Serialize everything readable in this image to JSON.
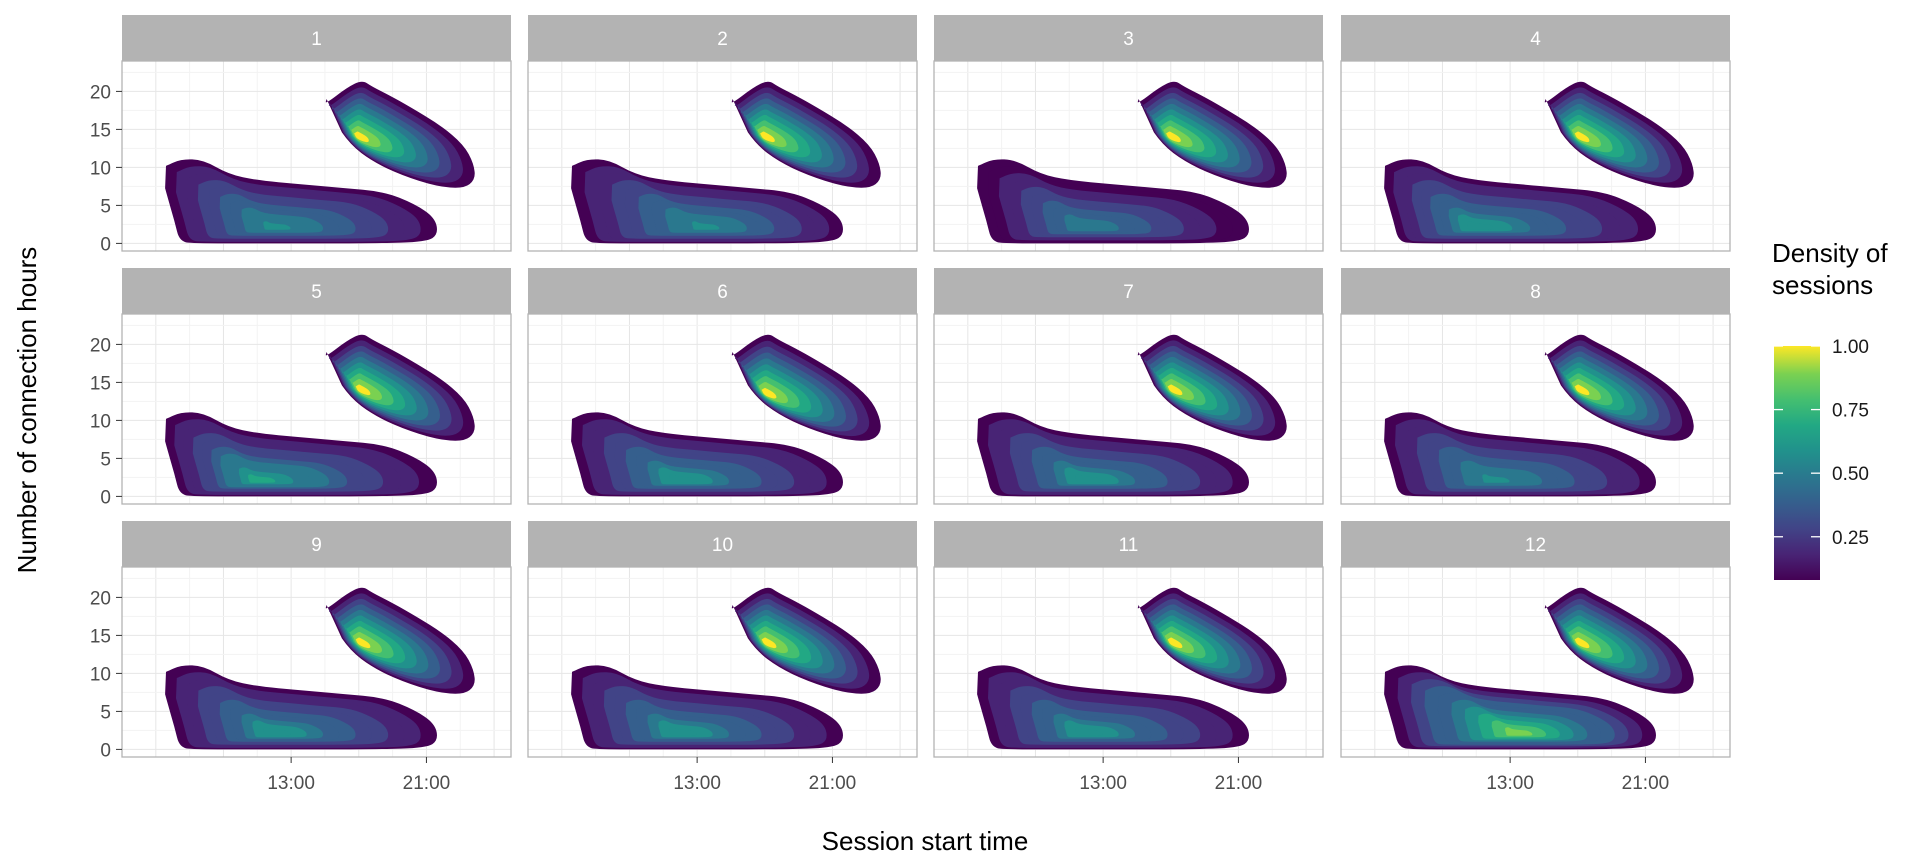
{
  "chart_data": {
    "type": "contour-density",
    "facet_by": "month",
    "facets": [
      {
        "label": "1",
        "peak_day": [
          16.9,
          14.0
        ],
        "peak_night": [
          12.0,
          2.0
        ],
        "level_night": 0.55
      },
      {
        "label": "2",
        "peak_day": [
          16.9,
          14.0
        ],
        "peak_night": [
          13.5,
          2.0
        ],
        "level_night": 0.55
      },
      {
        "label": "3",
        "peak_day": [
          16.9,
          14.0
        ],
        "peak_night": [
          12.0,
          2.0
        ],
        "level_night": 0.5
      },
      {
        "label": "4",
        "peak_day": [
          17.0,
          14.0
        ],
        "peak_night": [
          11.0,
          2.0
        ],
        "level_night": 0.6
      },
      {
        "label": "5",
        "peak_day": [
          17.0,
          14.0
        ],
        "peak_night": [
          11.0,
          2.0
        ],
        "level_night": 0.65
      },
      {
        "label": "6",
        "peak_day": [
          17.0,
          13.5
        ],
        "peak_night": [
          12.0,
          2.0
        ],
        "level_night": 0.6
      },
      {
        "label": "7",
        "peak_day": [
          17.0,
          14.0
        ],
        "peak_night": [
          12.0,
          2.0
        ],
        "level_night": 0.6
      },
      {
        "label": "8",
        "peak_day": [
          17.0,
          14.0
        ],
        "peak_night": [
          12.0,
          2.0
        ],
        "level_night": 0.55
      },
      {
        "label": "9",
        "peak_day": [
          17.0,
          14.0
        ],
        "peak_night": [
          12.0,
          2.0
        ],
        "level_night": 0.6
      },
      {
        "label": "10",
        "peak_day": [
          17.0,
          14.0
        ],
        "peak_night": [
          12.0,
          2.0
        ],
        "level_night": 0.6
      },
      {
        "label": "11",
        "peak_day": [
          17.0,
          14.0
        ],
        "peak_night": [
          12.0,
          2.0
        ],
        "level_night": 0.6
      },
      {
        "label": "12",
        "peak_day": [
          17.0,
          14.0
        ],
        "peak_night": [
          13.5,
          2.0
        ],
        "level_night": 0.85
      }
    ],
    "xlabel": "Session start time",
    "ylabel": "Number of connection hours",
    "x_ticks": [
      "13:00",
      "21:00"
    ],
    "x_tick_values": [
      13,
      21
    ],
    "xlim": [
      3,
      26
    ],
    "y_ticks": [
      "0",
      "5",
      "10",
      "15",
      "20"
    ],
    "y_tick_values": [
      0,
      5,
      10,
      15,
      20
    ],
    "ylim": [
      -1,
      24
    ],
    "grid": true,
    "legend": {
      "title_line1": "Density of",
      "title_line2": "sessions",
      "labels": [
        "1.00",
        "0.75",
        "0.50",
        "0.25"
      ],
      "values": [
        1.0,
        0.75,
        0.5,
        0.25
      ],
      "range": [
        0.08,
        1.0
      ],
      "position": "right"
    },
    "colormap": "viridis",
    "colors": {
      "strip_bg": "#b3b3b3",
      "panel_border": "#b3b3b3",
      "grid_major": "#e6e6e6",
      "grid_minor": "#f3f3f3",
      "viridis_low": "#440154",
      "viridis_high": "#fde725"
    }
  }
}
